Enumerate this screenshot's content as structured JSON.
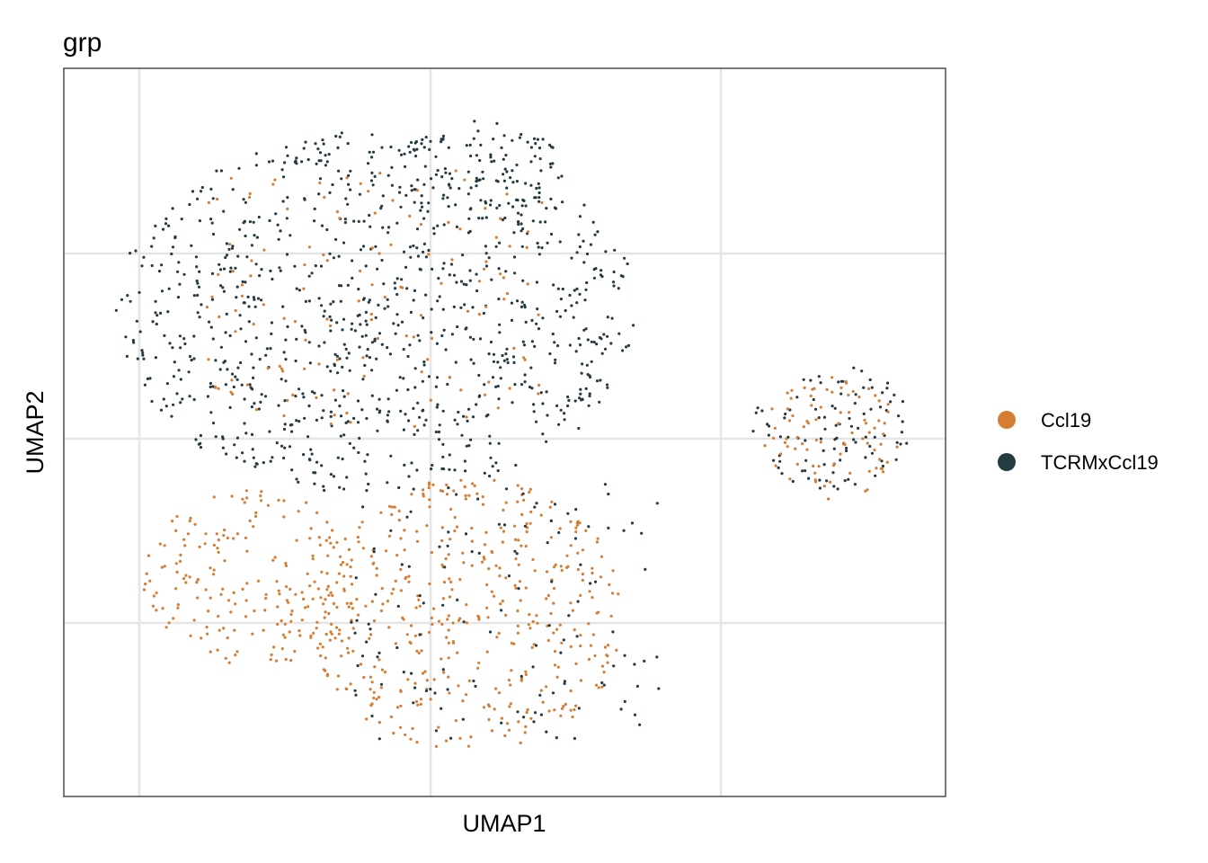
{
  "chart_data": {
    "type": "scatter",
    "title": "grp",
    "xlabel": "UMAP1",
    "ylabel": "UMAP2",
    "x_ticks_labeled": false,
    "y_ticks_labeled": false,
    "grid": true,
    "legend_position": "right",
    "legend": [
      {
        "name": "Ccl19",
        "color": "#D67D34"
      },
      {
        "name": "TCRMxCcl19",
        "color": "#263A42"
      }
    ],
    "series": [
      {
        "name": "TCRMxCcl19",
        "color": "#263A42",
        "approx_regions": [
          {
            "label": "main upper cluster",
            "cx": -1.0,
            "cy": 2.5,
            "rx": 4.6,
            "ry": 3.2
          },
          {
            "label": "top lobe",
            "cx": 0.8,
            "cy": 5.0,
            "rx": 1.6,
            "ry": 0.9
          },
          {
            "label": "right cluster",
            "cx": 7.0,
            "cy": 0.5,
            "rx": 1.4,
            "ry": 1.1
          }
        ]
      },
      {
        "name": "Ccl19",
        "color": "#D67D34",
        "approx_regions": [
          {
            "label": "left lower cluster",
            "cx": -3.2,
            "cy": -2.2,
            "rx": 1.9,
            "ry": 1.6
          },
          {
            "label": "central lower cluster",
            "cx": 0.6,
            "cy": -2.8,
            "rx": 2.8,
            "ry": 2.4
          },
          {
            "label": "right cluster",
            "cx": 7.0,
            "cy": 0.3,
            "rx": 1.2,
            "ry": 1.1
          }
        ]
      }
    ]
  }
}
